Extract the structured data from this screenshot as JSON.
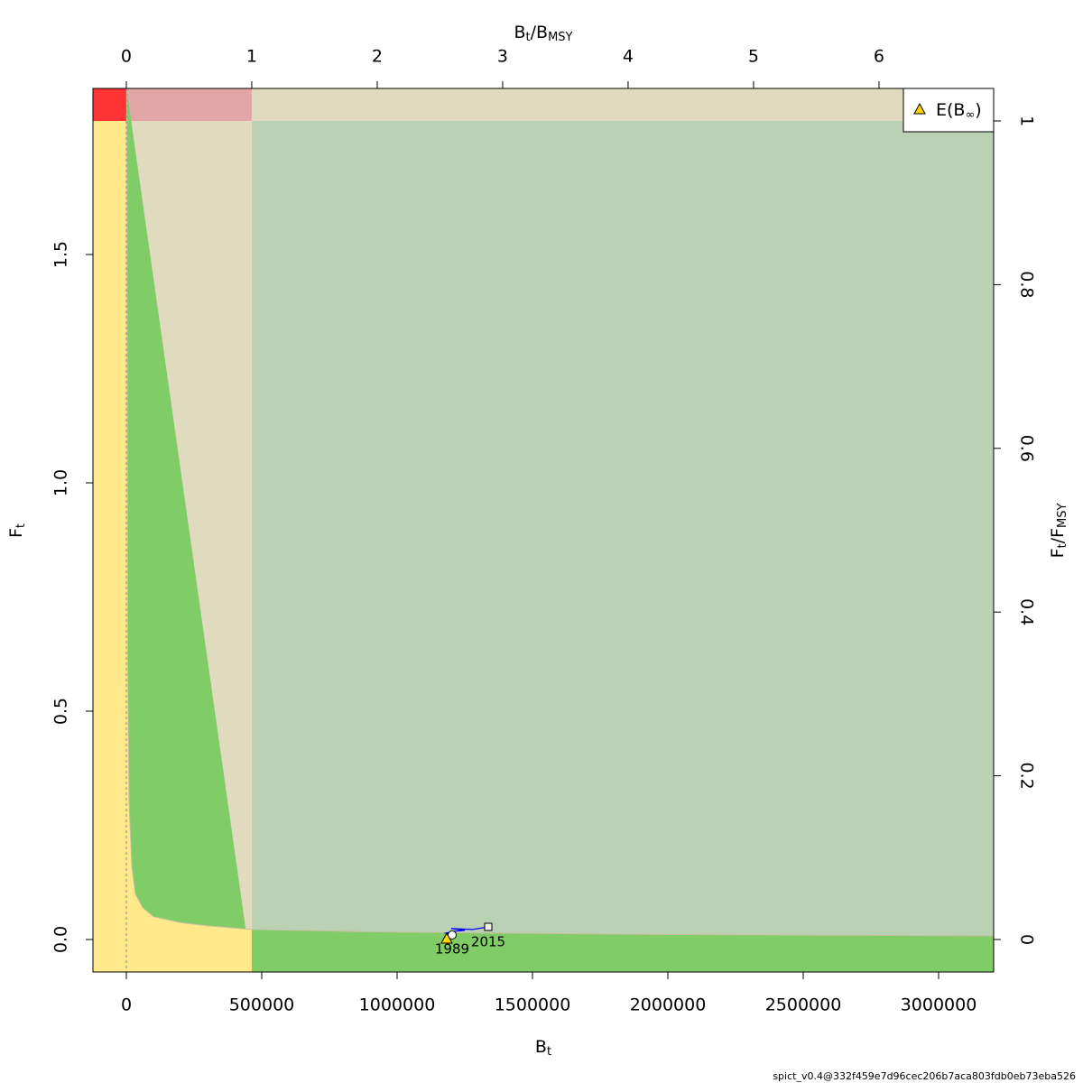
{
  "chart_data": {
    "type": "kobe",
    "xlabel": [
      "B",
      "t"
    ],
    "ylabel": [
      "F",
      "t"
    ],
    "x2label": [
      "B",
      "t",
      "/B",
      "MSY"
    ],
    "y2label": [
      "F",
      "t",
      "/F",
      "MSY"
    ],
    "xlim": [
      -123333,
      3203333
    ],
    "ylim": [
      -0.0711,
      1.8636
    ],
    "x2lim": [
      -0.266,
      6.914
    ],
    "y2lim": [
      -0.0397,
      1.0397
    ],
    "xticks": [
      0,
      500000,
      1000000,
      1500000,
      2000000,
      2500000,
      3000000
    ],
    "yticks": [
      {
        "value": 0,
        "label": "0.0"
      },
      0.5,
      {
        "value": 1,
        "label": "1.0"
      },
      1.5
    ],
    "x2ticks": [
      0,
      1,
      2,
      3,
      4,
      5,
      6
    ],
    "y2ticks": [
      0,
      0.2,
      0.4,
      0.6,
      0.8,
      1
    ],
    "boundary": {
      "x": [
        1700,
        5000,
        10000,
        20000,
        33000,
        60000,
        100000,
        200000,
        300000,
        463333,
        1000000,
        2000000,
        3203333
      ],
      "values": [
        1.86,
        0.6,
        0.3,
        0.16,
        0.1,
        0.07,
        0.05,
        0.037,
        0.03,
        0.022,
        0.016,
        0.011,
        0.008
      ]
    },
    "series": [
      {
        "name": "trajectory",
        "color": "#0000ff",
        "x": [
          1203333,
          1180000,
          1210000,
          1250000,
          1200000,
          1280000,
          1336667
        ],
        "values": [
          0.0099,
          0.014,
          0.018,
          0.02,
          0.024,
          0.022,
          0.0277
        ]
      }
    ],
    "year_labels": [
      "1989",
      "2015"
    ],
    "equilibrium": {
      "name": [
        "E(B",
        "∞",
        ")"
      ],
      "x": 1183333,
      "value": 0.002,
      "color": "#ffd700"
    },
    "footer": "spict_v0.4@332f459e7d96cec206b7aca803fdb0eb73eba526"
  }
}
